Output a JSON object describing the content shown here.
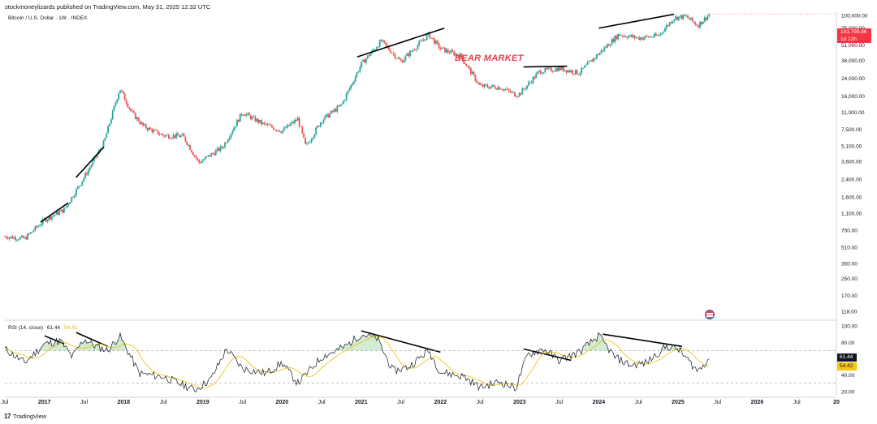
{
  "header": {
    "publisher_line": "stockmoneylizards published on TradingView.com, May 31, 2025 12:32 UTC"
  },
  "legend": {
    "symbol_line": "Bitcoin / U.S. Dollar · 1W · INDEX"
  },
  "annotation": {
    "bear_market": "BEAR MARKET"
  },
  "price_badge": {
    "price": "103,799.86",
    "countdown": "1d 12h"
  },
  "rsi": {
    "label": "RSI (14, close)",
    "value": "61.44",
    "ma_value": "54.42"
  },
  "footer": {
    "brand": "TradingView"
  },
  "icons": {
    "footer_logo": "tradingview-logo-icon",
    "flag": "us-flag-icon"
  },
  "colors": {
    "up": "#26a69a",
    "down": "#ef5350",
    "rsi_line": "#131722",
    "rsi_ma": "#e8c000",
    "bear_text": "#e0414f",
    "badge": "#f23645"
  },
  "chart_data": [
    {
      "type": "candlestick",
      "title": "Bitcoin / U.S. Dollar · 1W · INDEX",
      "y_scale": "log",
      "y_ticks": [
        118,
        170,
        250,
        350,
        510,
        750,
        1100,
        1600,
        2400,
        3600,
        5100,
        7500,
        11000,
        16000,
        24000,
        36000,
        51000,
        75000,
        100000
      ],
      "y_tick_labels": [
        "118.00",
        "170.00",
        "250.00",
        "350.00",
        "510.00",
        "750.00",
        "1,100.00",
        "1,600.00",
        "2,400.00",
        "3,600.00",
        "5,100.00",
        "7,500.00",
        "11,000.00",
        "16,000.00",
        "24,000.00",
        "36,000.00",
        "51,000.00",
        "75,000.00",
        "100,000.00"
      ],
      "x_tick_labels": [
        "Jul",
        "2017",
        "Jul",
        "2018",
        "Jul",
        "2019",
        "Jul",
        "2020",
        "Jul",
        "2021",
        "Jul",
        "2022",
        "Jul",
        "2023",
        "Jul",
        "2024",
        "Jul",
        "2025",
        "Jul",
        "2026",
        "Jul",
        "20"
      ],
      "x_range": [
        "2016-07",
        "2027-01"
      ],
      "series_x": [
        2016.5,
        2016.75,
        2017.0,
        2017.25,
        2017.5,
        2017.75,
        2017.95,
        2018.1,
        2018.25,
        2018.5,
        2018.75,
        2018.95,
        2019.25,
        2019.5,
        2019.75,
        2020.0,
        2020.2,
        2020.3,
        2020.5,
        2020.75,
        2021.0,
        2021.25,
        2021.5,
        2021.85,
        2022.0,
        2022.25,
        2022.5,
        2022.75,
        2022.95,
        2023.0,
        2023.25,
        2023.5,
        2023.75,
        2024.0,
        2024.25,
        2024.5,
        2024.75,
        2024.95,
        2025.1,
        2025.25,
        2025.4
      ],
      "series_price": [
        650,
        620,
        950,
        1200,
        2500,
        5500,
        19000,
        11000,
        8000,
        6500,
        6400,
        3500,
        5000,
        11000,
        8500,
        7200,
        9500,
        5000,
        9200,
        13000,
        33000,
        56000,
        35000,
        65000,
        47000,
        40000,
        20000,
        19500,
        16500,
        16800,
        28000,
        30000,
        27000,
        42000,
        65000,
        60000,
        63000,
        95000,
        98000,
        80000,
        103800
      ],
      "last_price": 103799.86
    },
    {
      "type": "line",
      "title": "RSI (14, close)",
      "y_ticks": [
        20,
        40,
        60,
        80,
        100
      ],
      "y_tick_labels": [
        "20.00",
        "40.00",
        "60.00",
        "80.00",
        "100.00"
      ],
      "dashed_levels": [
        30,
        70
      ],
      "series_x": [
        2016.5,
        2016.75,
        2017.0,
        2017.2,
        2017.35,
        2017.5,
        2017.65,
        2017.8,
        2017.95,
        2018.2,
        2018.5,
        2018.9,
        2019.1,
        2019.3,
        2019.5,
        2019.8,
        2020.0,
        2020.2,
        2020.5,
        2020.8,
        2021.0,
        2021.2,
        2021.4,
        2021.6,
        2021.85,
        2022.0,
        2022.3,
        2022.5,
        2022.75,
        2022.95,
        2023.1,
        2023.3,
        2023.5,
        2023.75,
        2024.0,
        2024.2,
        2024.4,
        2024.6,
        2024.85,
        2025.0,
        2025.25,
        2025.4
      ],
      "series_rsi": [
        72,
        55,
        78,
        82,
        62,
        84,
        75,
        70,
        88,
        42,
        38,
        22,
        35,
        72,
        48,
        42,
        55,
        30,
        62,
        75,
        90,
        85,
        45,
        50,
        70,
        44,
        38,
        25,
        32,
        24,
        65,
        72,
        58,
        68,
        88,
        62,
        52,
        55,
        75,
        72,
        45,
        61.44
      ],
      "ma_last": 54.42
    }
  ]
}
